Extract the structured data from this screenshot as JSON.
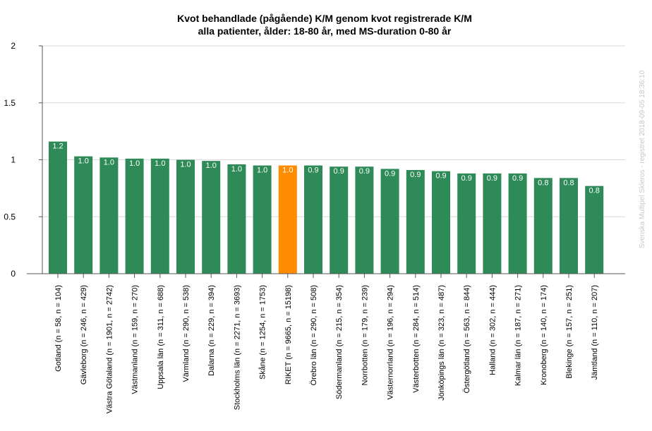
{
  "chart_data": {
    "type": "bar",
    "title": "Kvot behandlade (pågående) K/M genom kvot registrerade K/M",
    "subtitle": "alla patienter, ålder: 18-80 år, med MS-duration 0-80 år",
    "xlabel": "",
    "ylabel": "",
    "ylim": [
      0,
      2
    ],
    "yticks": [
      "0",
      "0.5",
      "1",
      "1.5",
      "2"
    ],
    "grid": true,
    "categories": [
      "Gotland (n = 58, n = 104)",
      "Gävleborg (n = 246, n = 429)",
      "Västra Götaland (n = 1901, n = 2742)",
      "Västmanland (n = 159, n = 270)",
      "Uppsala län (n = 311, n = 688)",
      "Värmland (n = 290, n = 538)",
      "Dalarna (n = 229, n = 394)",
      "Stockholms län (n = 2271, n = 3693)",
      "Skåne (n = 1254, n = 1753)",
      "RIKET (n = 9665, n = 15198)",
      "Örebro län (n = 290, n = 508)",
      "Södermanland (n = 215, n = 354)",
      "Norrbotten (n = 179, n = 239)",
      "Västernorrland (n = 196, n = 294)",
      "Västerbotten (n = 284, n = 514)",
      "Jönköpings län (n = 323, n = 487)",
      "Östergötland (n = 563, n = 844)",
      "Halland (n = 302, n = 444)",
      "Kalmar län (n = 187, n = 271)",
      "Kronoberg (n = 140, n = 174)",
      "Blekinge (n = 157, n = 251)",
      "Jämtland (n = 110, n = 207)"
    ],
    "values": [
      1.16,
      1.03,
      1.02,
      1.01,
      1.01,
      1.0,
      0.99,
      0.96,
      0.95,
      0.95,
      0.95,
      0.94,
      0.94,
      0.92,
      0.91,
      0.9,
      0.88,
      0.88,
      0.88,
      0.84,
      0.84,
      0.77
    ],
    "labels": [
      "1.2",
      "1.0",
      "1.0",
      "1.0",
      "1.0",
      "1.0",
      "1.0",
      "1.0",
      "1.0",
      "1.0",
      "0.9",
      "0.9",
      "0.9",
      "0.9",
      "0.9",
      "0.9",
      "0.9",
      "0.9",
      "0.9",
      "0.8",
      "0.8",
      "0.8"
    ],
    "highlight_index": 9,
    "colors": {
      "bar": "#2e8b57",
      "highlight": "#ff8c00",
      "grid": "#d9d9d9",
      "axis": "#555555"
    },
    "watermark": "Svenska Multipel Skleros - registret 2018-09-05 18:36:10"
  }
}
